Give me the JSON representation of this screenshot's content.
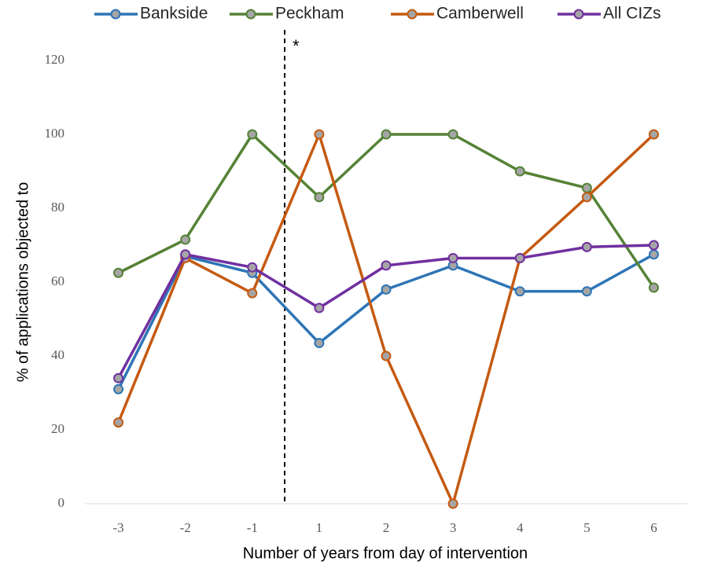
{
  "chart_data": {
    "type": "line",
    "categories": [
      "-3",
      "-2",
      "-1",
      "1",
      "2",
      "3",
      "4",
      "5",
      "6"
    ],
    "series": [
      {
        "name": "Bankside",
        "color": "#2e75b6",
        "values": [
          31,
          67,
          62.5,
          43.5,
          58,
          64.5,
          57.5,
          57.5,
          67.5
        ]
      },
      {
        "name": "Peckham",
        "color": "#548235",
        "values": [
          62.5,
          71.5,
          100,
          83,
          100,
          100,
          90,
          85.5,
          58.5
        ]
      },
      {
        "name": "Camberwell",
        "color": "#c55a11",
        "values": [
          22,
          66.5,
          57,
          100,
          40,
          0,
          66.5,
          83,
          100
        ]
      },
      {
        "name": "All CIZs",
        "color": "#7030a0",
        "values": [
          34,
          67.5,
          64,
          53,
          64.5,
          66.5,
          66.5,
          69.5,
          70
        ]
      }
    ],
    "marker_fill": "#a5a5a5",
    "ylim": [
      0,
      120
    ],
    "yticks": [
      0,
      20,
      40,
      60,
      80,
      100,
      120
    ],
    "grid": false,
    "ylabel": "% of applications objected to",
    "xlabel": "Number of years from day of intervention",
    "annotation": "*"
  }
}
